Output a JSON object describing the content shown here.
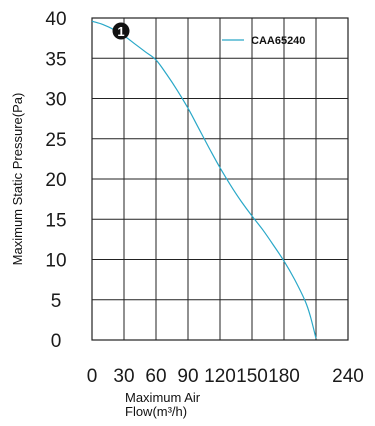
{
  "chart_data": {
    "type": "line",
    "title": "",
    "xlabel": "Maximum Air Flow(m³/h)",
    "xlabel_lines": [
      "Maximum Air",
      "Flow(m³/h)"
    ],
    "ylabel": "Maximum Static Pressure(Pa)",
    "xlim": [
      0,
      240
    ],
    "ylim": [
      0,
      40
    ],
    "xticks": [
      0,
      30,
      60,
      90,
      120,
      150,
      180,
      240
    ],
    "yticks": [
      0,
      5,
      10,
      15,
      20,
      25,
      30,
      35,
      40
    ],
    "grid": true,
    "legend": {
      "position": "top-right"
    },
    "marker_label": "1",
    "series": [
      {
        "name": "CAA65240",
        "color": "#2aa8c8",
        "x": [
          0,
          10,
          20,
          30,
          40,
          50,
          60,
          70,
          80,
          90,
          100,
          110,
          120,
          130,
          140,
          150,
          160,
          170,
          180,
          190,
          200,
          205,
          210
        ],
        "y": [
          39.6,
          39.2,
          38.6,
          37.8,
          36.8,
          35.8,
          34.8,
          33.0,
          31.0,
          28.8,
          26.3,
          23.8,
          21.4,
          19.2,
          17.2,
          15.4,
          13.7,
          11.8,
          9.8,
          7.5,
          4.8,
          2.8,
          0.2
        ]
      }
    ]
  }
}
